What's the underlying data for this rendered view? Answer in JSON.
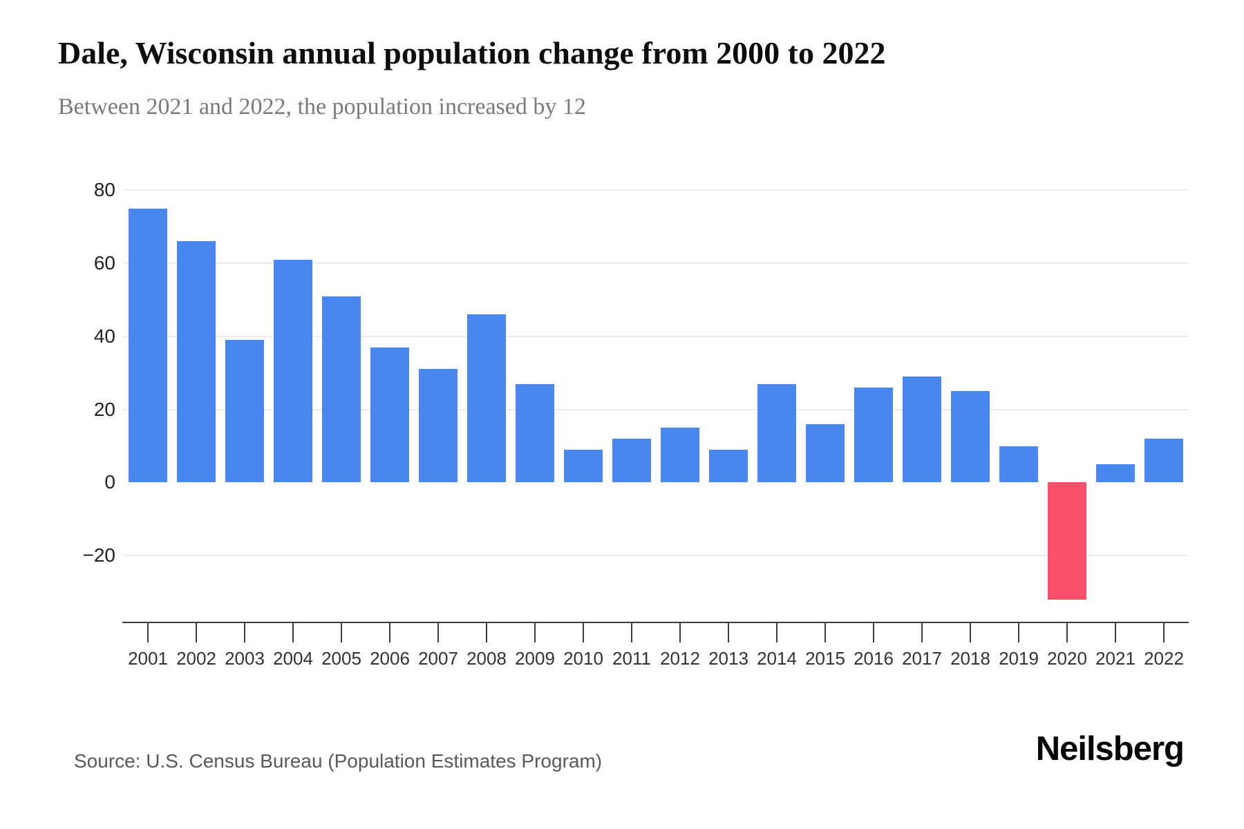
{
  "chart_data": {
    "type": "bar",
    "title": "Dale, Wisconsin annual population change from 2000 to 2022",
    "subtitle": "Between 2021 and 2022, the population increased by 12",
    "categories": [
      "2001",
      "2002",
      "2003",
      "2004",
      "2005",
      "2006",
      "2007",
      "2008",
      "2009",
      "2010",
      "2011",
      "2012",
      "2013",
      "2014",
      "2015",
      "2016",
      "2017",
      "2018",
      "2019",
      "2020",
      "2021",
      "2022"
    ],
    "values": [
      75,
      66,
      39,
      61,
      51,
      37,
      31,
      46,
      27,
      9,
      12,
      15,
      9,
      27,
      16,
      26,
      29,
      25,
      10,
      -32,
      5,
      12
    ],
    "xlabel": "",
    "ylabel": "",
    "ylim": [
      -35,
      85
    ],
    "yticks": [
      {
        "label": "80",
        "value": 80,
        "line": true
      },
      {
        "label": "60",
        "value": 60,
        "line": true
      },
      {
        "label": "40",
        "value": 40,
        "line": true
      },
      {
        "label": "20",
        "value": 20,
        "line": true
      },
      {
        "label": "0",
        "value": 0,
        "line": false
      },
      {
        "label": "−20",
        "value": -20,
        "line": true
      }
    ],
    "grid": "horizontal",
    "legend": "none",
    "bar_color": "#4787ee",
    "negative_bar_color": "#fa506b"
  },
  "footer": {
    "source": "Source: U.S. Census Bureau (Population Estimates Program)",
    "logo": "Neilsberg"
  }
}
